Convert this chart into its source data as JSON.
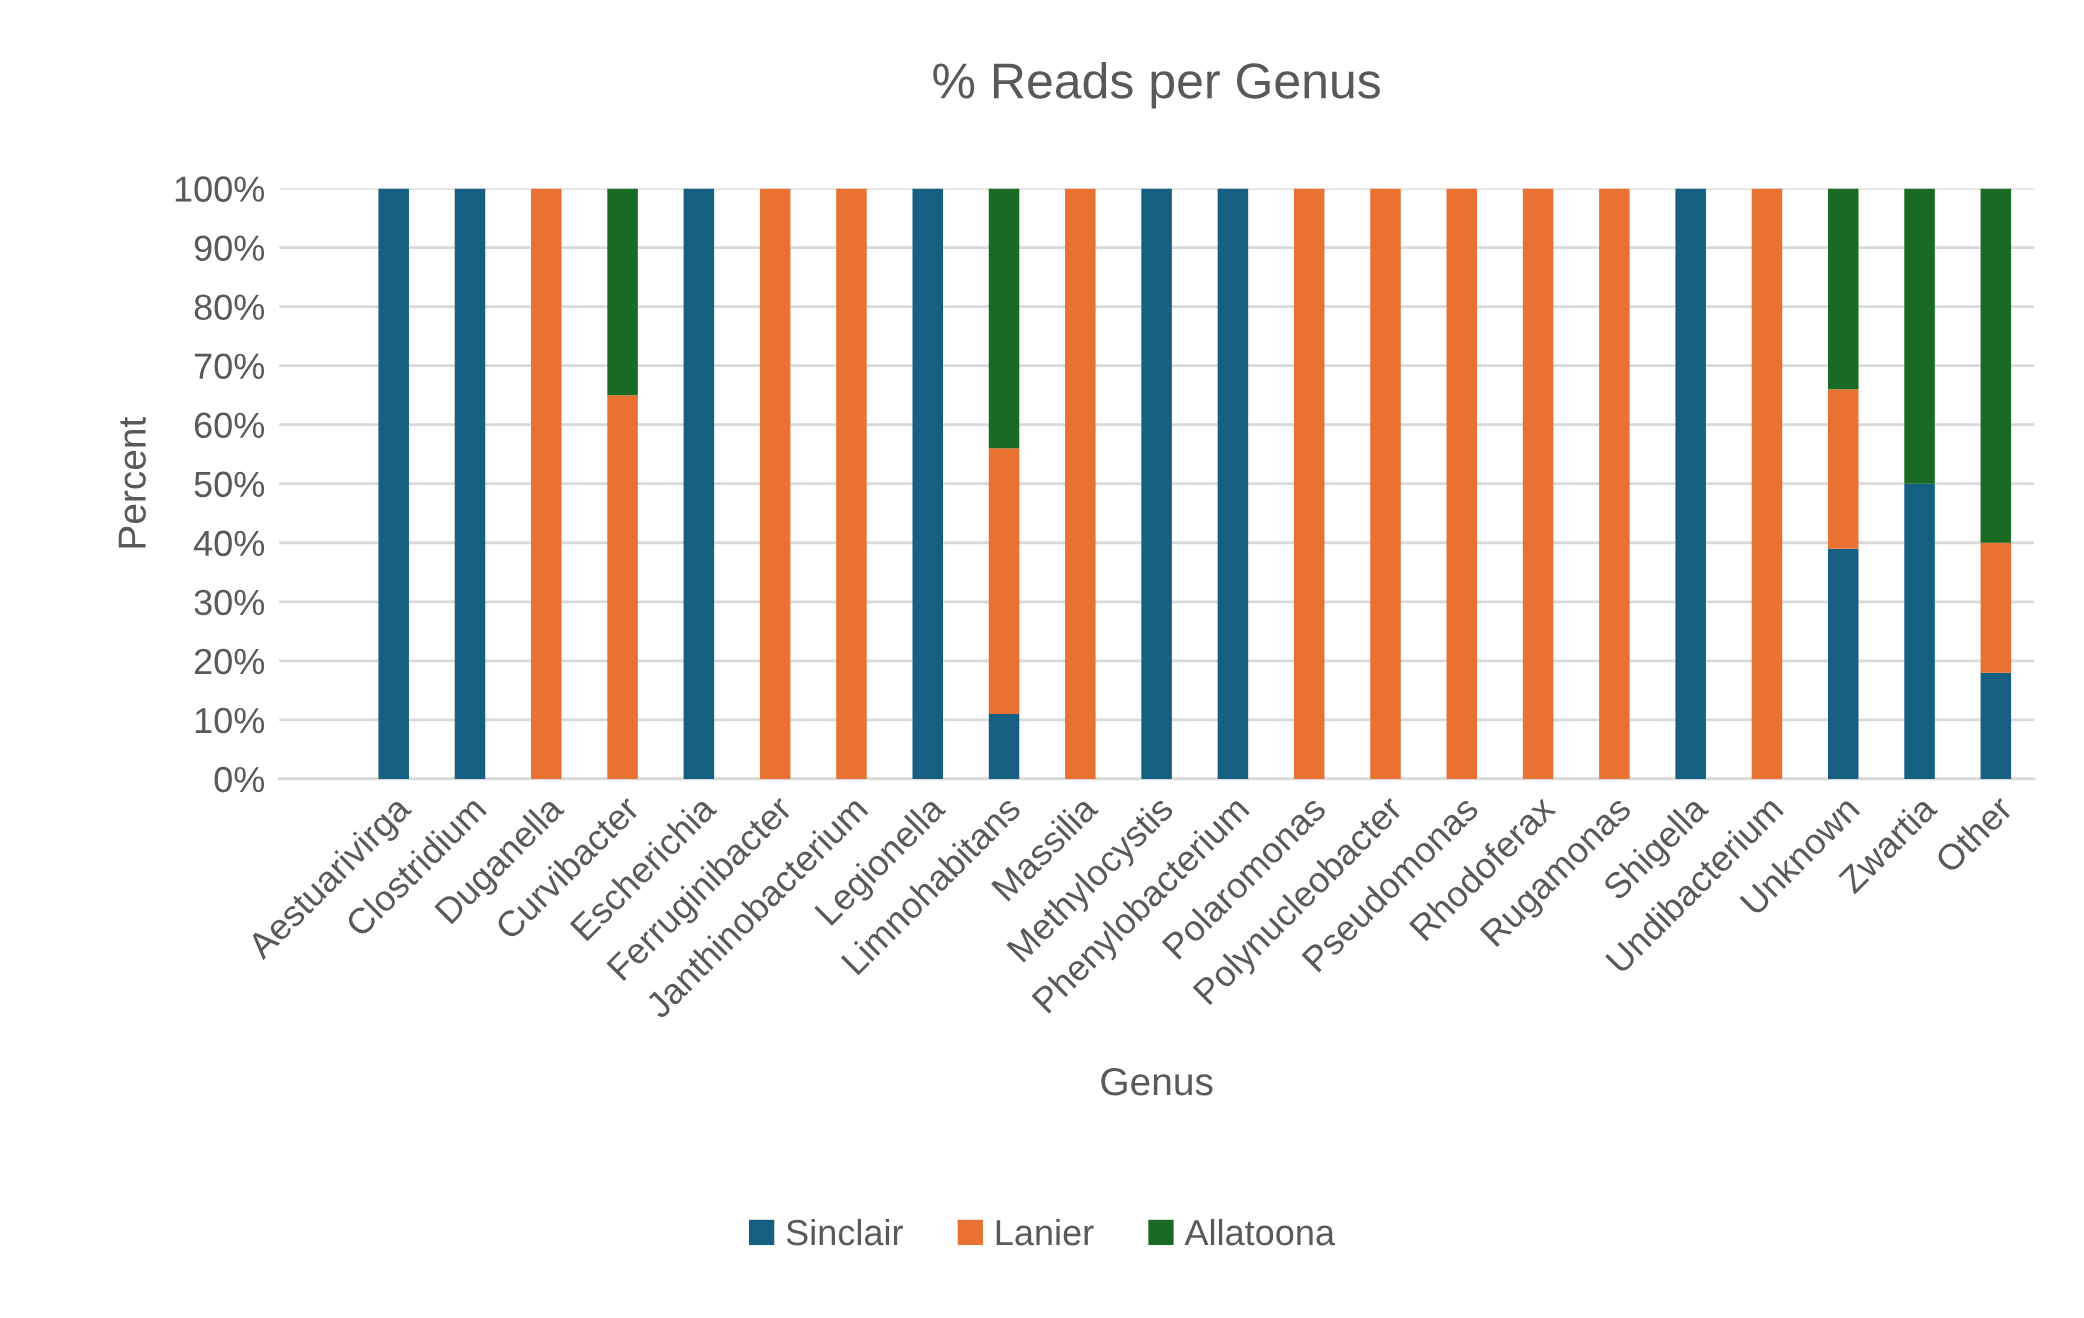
{
  "chart_data": {
    "type": "bar",
    "stacked": true,
    "title": "% Reads per Genus",
    "xlabel": "Genus",
    "ylabel": "Percent",
    "categories": [
      null,
      "Aestuarivirga",
      "Clostridium",
      "Duganella",
      "Curvibacter",
      "Escherichia",
      "Ferruginibacter",
      "Janthinobacterium",
      "Legionella",
      "Limnohabitans",
      "Massilia",
      "Methylocystis",
      "Phenylobacterium",
      "Polaromonas",
      "Polynucleobacter",
      "Pseudomonas",
      "Rhodoferax",
      "Rugamonas",
      "Shigella",
      "Undibacterium",
      "Unknown",
      "Zwartia",
      "Other"
    ],
    "series": [
      {
        "name": "Sinclair",
        "color": "#156082",
        "values": [
          null,
          100,
          100,
          0,
          0,
          100,
          0,
          0,
          100,
          11,
          0,
          100,
          100,
          0,
          0,
          0,
          0,
          0,
          100,
          0,
          39,
          50,
          18
        ]
      },
      {
        "name": "Lanier",
        "color": "#e97132",
        "values": [
          null,
          0,
          0,
          100,
          65,
          0,
          100,
          100,
          0,
          45,
          100,
          0,
          0,
          100,
          100,
          100,
          100,
          100,
          0,
          100,
          27,
          0,
          22
        ]
      },
      {
        "name": "Allatoona",
        "color": "#196b24",
        "values": [
          null,
          0,
          0,
          0,
          35,
          0,
          0,
          0,
          0,
          44,
          0,
          0,
          0,
          0,
          0,
          0,
          0,
          0,
          0,
          0,
          34,
          50,
          60
        ]
      }
    ],
    "ylim": [
      0,
      100
    ],
    "yticks": [
      {
        "value": 0,
        "label": "0%"
      },
      {
        "value": 10,
        "label": "10%"
      },
      {
        "value": 20,
        "label": "20%"
      },
      {
        "value": 30,
        "label": "30%"
      },
      {
        "value": 40,
        "label": "40%"
      },
      {
        "value": 50,
        "label": "50%"
      },
      {
        "value": 60,
        "label": "60%"
      },
      {
        "value": 70,
        "label": "70%"
      },
      {
        "value": 80,
        "label": "80%"
      },
      {
        "value": 90,
        "label": "90%"
      },
      {
        "value": 100,
        "label": "100%"
      }
    ],
    "grid": "y",
    "legend": "bottom"
  }
}
